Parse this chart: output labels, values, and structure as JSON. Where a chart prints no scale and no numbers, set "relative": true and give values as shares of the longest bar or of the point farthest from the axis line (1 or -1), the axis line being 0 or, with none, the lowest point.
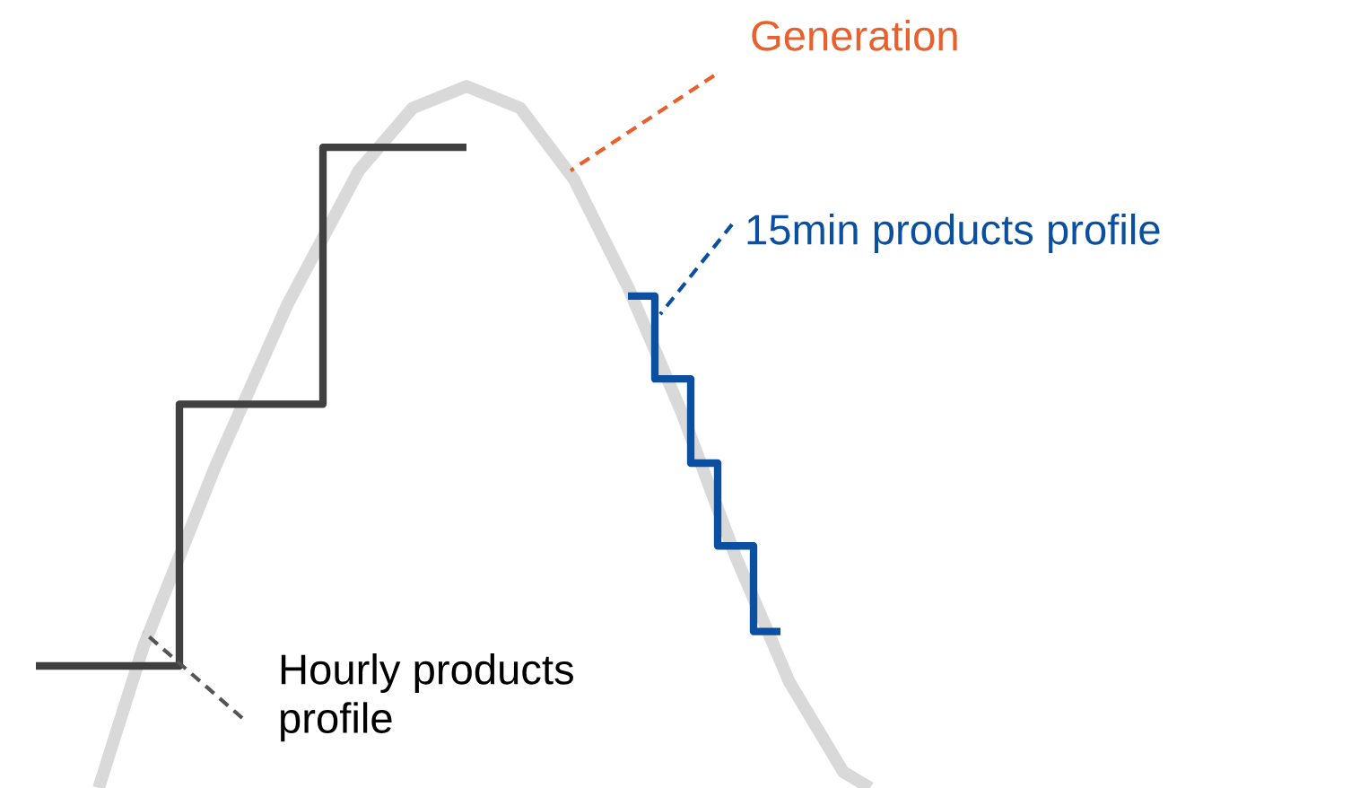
{
  "chart_data": {
    "type": "line",
    "relative": true,
    "tick_labels": false,
    "categories": [
      null,
      null,
      null,
      null,
      null,
      null,
      null,
      null,
      null,
      null,
      null,
      null,
      null,
      null,
      null,
      null,
      null,
      null,
      null,
      null,
      null,
      null,
      null,
      null,
      null,
      null,
      null,
      null,
      null,
      null,
      null,
      null,
      null,
      null,
      null,
      null,
      null,
      null,
      null,
      null,
      null,
      null,
      null,
      null,
      null,
      null,
      null,
      null,
      null,
      null,
      null,
      null,
      null,
      null,
      null,
      null,
      null,
      null,
      null,
      null,
      null,
      null,
      null,
      null,
      null,
      null,
      null,
      null,
      null,
      null,
      null,
      null,
      null,
      null,
      null,
      null,
      null,
      null,
      null,
      null,
      null,
      null,
      null,
      null,
      null,
      null,
      null,
      null,
      null,
      null,
      null,
      null,
      null,
      null,
      null
    ],
    "series": [
      {
        "color": "#d9d9d9",
        "values": [
          null,
          null,
          null,
          null,
          null,
          null,
          null,
          0,
          null,
          null,
          null,
          null,
          0.202,
          null,
          null,
          null,
          null,
          null,
          null,
          null,
          0.458,
          null,
          null,
          null,
          null,
          null,
          null,
          null,
          0.688,
          null,
          null,
          null,
          null,
          null,
          null,
          null,
          0.88,
          null,
          null,
          null,
          null,
          null,
          0.969,
          null,
          null,
          null,
          null,
          null,
          1,
          null,
          null,
          null,
          null,
          null,
          0.969,
          null,
          null,
          null,
          null,
          null,
          0.867,
          null,
          null,
          null,
          null,
          null,
          0.714,
          null,
          null,
          null,
          null,
          null,
          0.535,
          null,
          null,
          null,
          null,
          null,
          0.33,
          null,
          null,
          null,
          null,
          null,
          0.151,
          null,
          null,
          null,
          null,
          null,
          0.023,
          null,
          null,
          0,
          null
        ]
      },
      {
        "type": "step",
        "color": "#404040",
        "values": [
          0.174,
          null,
          null,
          null,
          null,
          null,
          null,
          null,
          null,
          null,
          null,
          null,
          null,
          null,
          null,
          null,
          0.547,
          null,
          null,
          null,
          null,
          null,
          null,
          null,
          null,
          null,
          null,
          null,
          null,
          null,
          null,
          null,
          0.913,
          null,
          null,
          null,
          null,
          null,
          null,
          null,
          null,
          null,
          null,
          null,
          null,
          null,
          null,
          null,
          0.913,
          null,
          null,
          null,
          null,
          null,
          null,
          null,
          null,
          null,
          null,
          null,
          null,
          null,
          null,
          null,
          null,
          null,
          null,
          null,
          null,
          null,
          null,
          null,
          null,
          null,
          null,
          null,
          null,
          null,
          null,
          null,
          null,
          null,
          null,
          null,
          null,
          null,
          null,
          null,
          null,
          null,
          null,
          null,
          null,
          null,
          null
        ]
      },
      {
        "type": "step",
        "color": "#0a4fa0",
        "values": [
          null,
          null,
          null,
          null,
          null,
          null,
          null,
          null,
          null,
          null,
          null,
          null,
          null,
          null,
          null,
          null,
          null,
          null,
          null,
          null,
          null,
          null,
          null,
          null,
          null,
          null,
          null,
          null,
          null,
          null,
          null,
          null,
          null,
          null,
          null,
          null,
          null,
          null,
          null,
          null,
          null,
          null,
          null,
          null,
          null,
          null,
          null,
          null,
          null,
          null,
          null,
          null,
          null,
          null,
          null,
          null,
          null,
          null,
          null,
          null,
          null,
          null,
          null,
          null,
          null,
          null,
          0.701,
          null,
          null,
          0.583,
          null,
          null,
          null,
          0.463,
          null,
          null,
          0.345,
          null,
          null,
          null,
          0.223,
          null,
          null,
          0.223,
          null,
          null,
          null,
          null,
          null,
          null,
          null,
          null,
          null,
          null,
          null
        ]
      }
    ],
    "annotations": [
      "Generation",
      "15min products profile",
      "Hourly products\nprofile"
    ]
  }
}
